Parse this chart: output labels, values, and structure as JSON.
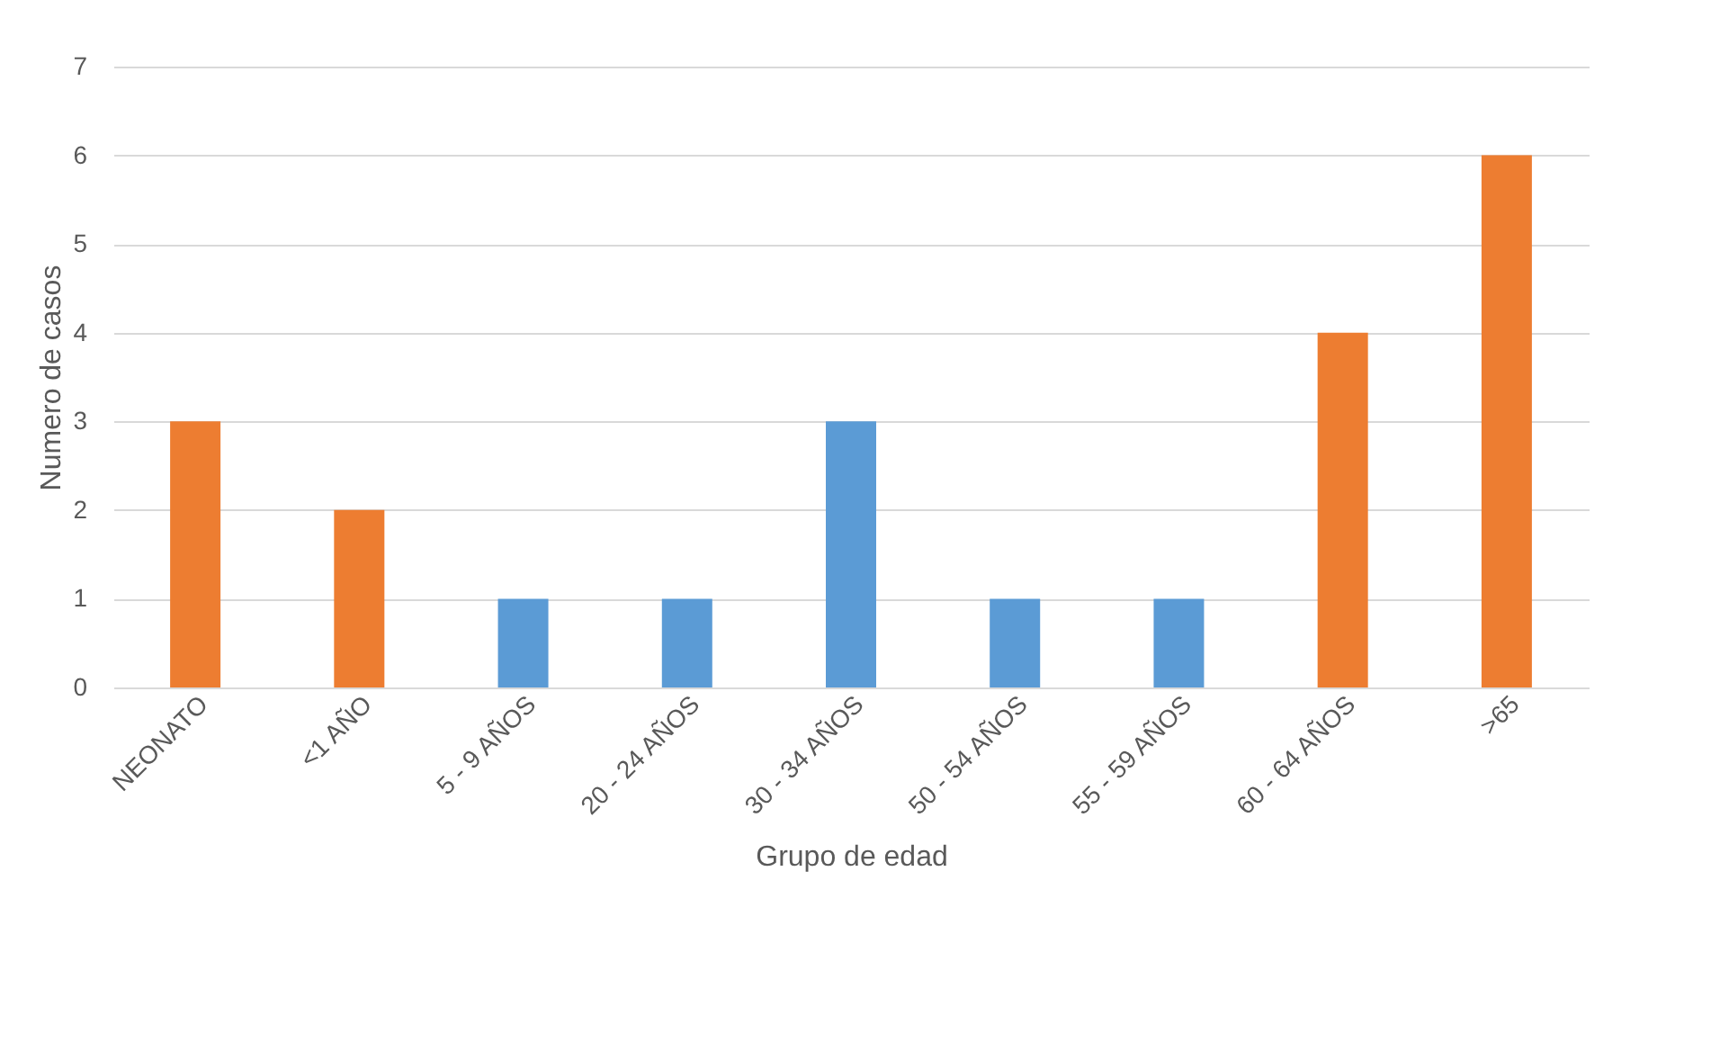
{
  "chart_data": {
    "type": "bar",
    "xlabel": "Grupo de edad",
    "ylabel": "Numero de casos",
    "categories": [
      "NEONATO",
      "<1 AÑO",
      "5 - 9 AÑOS",
      "20 - 24 AÑOS",
      "30 - 34 AÑOS",
      "50 - 54 AÑOS",
      "55 - 59 AÑOS",
      "60 - 64 AÑOS",
      ">65"
    ],
    "values": [
      3,
      2,
      1,
      1,
      3,
      1,
      1,
      4,
      6
    ],
    "colors": [
      "#ed7d31",
      "#ed7d31",
      "#5b9bd5",
      "#5b9bd5",
      "#5b9bd5",
      "#5b9bd5",
      "#5b9bd5",
      "#ed7d31",
      "#ed7d31"
    ],
    "ylim": [
      0,
      7
    ],
    "yticks": [
      0,
      1,
      2,
      3,
      4,
      5,
      6,
      7
    ],
    "grid": "y"
  }
}
